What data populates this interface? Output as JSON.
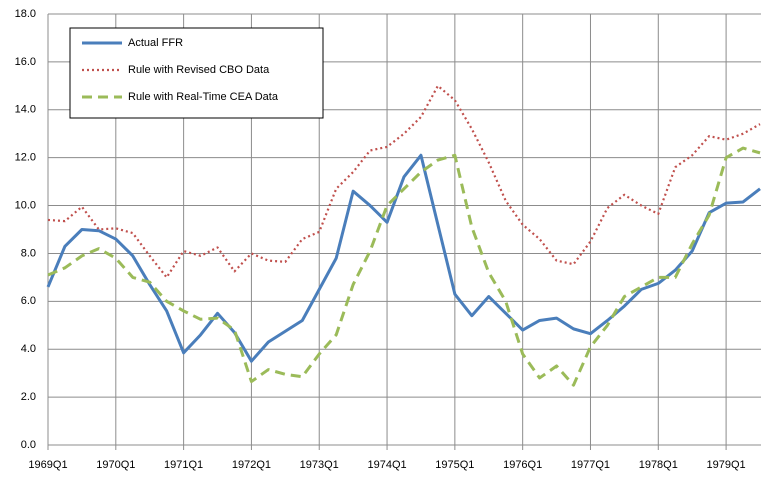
{
  "chart_data": {
    "type": "line",
    "categories": [
      "1969Q1",
      null,
      null,
      null,
      "1970Q1",
      null,
      null,
      null,
      "1971Q1",
      null,
      null,
      null,
      "1972Q1",
      null,
      null,
      null,
      "1973Q1",
      null,
      null,
      null,
      "1974Q1",
      null,
      null,
      null,
      "1975Q1",
      null,
      null,
      null,
      "1976Q1",
      null,
      null,
      null,
      "1977Q1",
      null,
      null,
      null,
      "1978Q1",
      null,
      null,
      null,
      "1979Q1",
      null,
      null
    ],
    "series": [
      {
        "name": "Actual FFR",
        "color": "#4a7ebb",
        "style": "solid",
        "values": [
          6.6,
          8.3,
          9.0,
          8.95,
          8.6,
          7.9,
          6.7,
          5.6,
          3.85,
          4.6,
          5.5,
          4.7,
          3.5,
          4.3,
          4.75,
          5.2,
          6.5,
          7.8,
          10.6,
          10.0,
          9.3,
          11.2,
          12.1,
          9.2,
          6.3,
          5.4,
          6.2,
          5.5,
          4.8,
          5.2,
          5.3,
          4.85,
          4.65,
          5.2,
          5.8,
          6.5,
          6.75,
          7.3,
          8.1,
          9.7,
          10.1,
          10.15,
          10.7
        ]
      },
      {
        "name": "Rule with Revised CBO Data",
        "color": "#c0504d",
        "style": "dotted",
        "values": [
          9.4,
          9.35,
          9.95,
          9.0,
          9.05,
          8.85,
          7.9,
          7.0,
          8.1,
          7.9,
          8.25,
          7.25,
          8.0,
          7.7,
          7.65,
          8.6,
          8.9,
          10.7,
          11.4,
          12.3,
          12.45,
          13.0,
          13.7,
          15.0,
          14.4,
          13.2,
          11.8,
          10.2,
          9.2,
          8.6,
          7.7,
          7.55,
          8.5,
          9.9,
          10.45,
          10.0,
          9.65,
          11.6,
          12.1,
          12.9,
          12.75,
          13.0,
          13.4
        ]
      },
      {
        "name": "Rule with Real-Time CEA Data",
        "color": "#9bbb59",
        "style": "dashed",
        "values": [
          7.1,
          7.4,
          7.9,
          8.2,
          7.8,
          7.0,
          6.8,
          6.0,
          5.6,
          5.25,
          5.3,
          4.8,
          2.65,
          3.15,
          2.95,
          2.85,
          3.8,
          4.6,
          6.7,
          8.1,
          10.0,
          10.7,
          11.4,
          11.9,
          12.1,
          9.1,
          7.2,
          6.0,
          3.8,
          2.8,
          3.3,
          2.5,
          4.1,
          5.0,
          6.2,
          6.6,
          7.0,
          7.0,
          8.4,
          9.6,
          12.0,
          12.4,
          12.2
        ]
      }
    ],
    "ylim": [
      0,
      18
    ],
    "yticks": [
      {
        "value": 0,
        "label": "0.0"
      },
      {
        "value": 2,
        "label": "2.0"
      },
      {
        "value": 4,
        "label": "4.0"
      },
      {
        "value": 6,
        "label": "6.0"
      },
      {
        "value": 8,
        "label": "8.0"
      },
      {
        "value": 10,
        "label": "10.0"
      },
      {
        "value": 12,
        "label": "12.0"
      },
      {
        "value": 14,
        "label": "14.0"
      },
      {
        "value": 16,
        "label": "16.0"
      },
      {
        "value": 18,
        "label": "18.0"
      }
    ],
    "grid": true,
    "legend": "upper-left"
  }
}
